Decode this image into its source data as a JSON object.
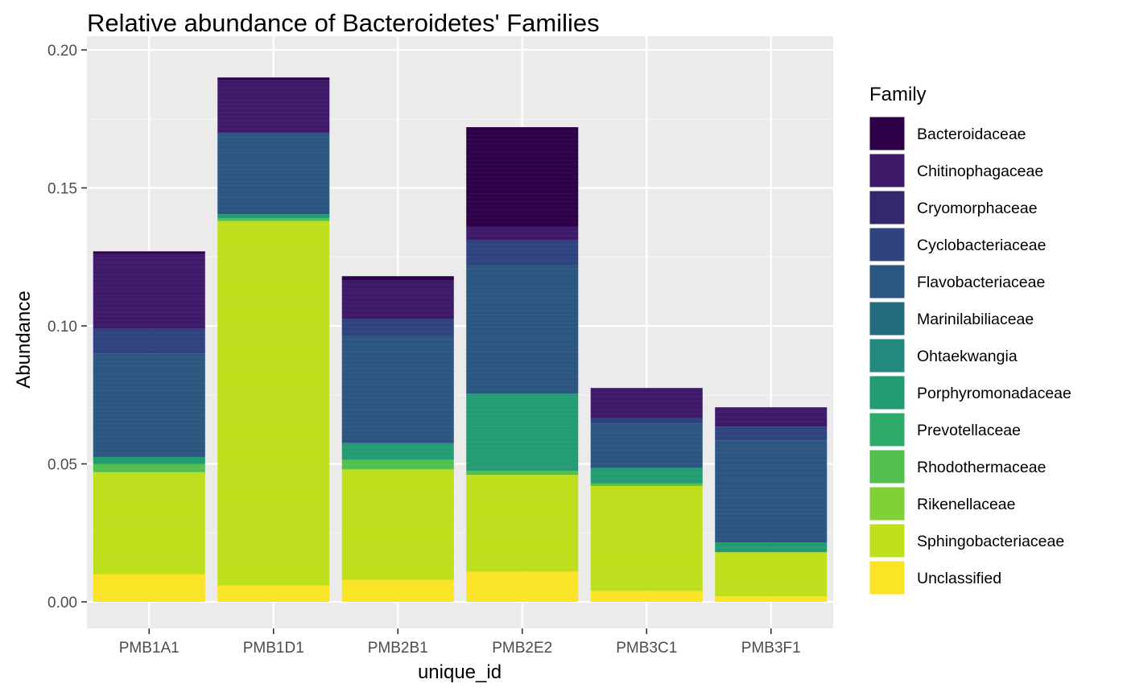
{
  "chart_data": {
    "type": "bar",
    "stacked": true,
    "title": "Relative abundance of Bacteroidetes' Families",
    "xlabel": "unique_id",
    "ylabel": "Abundance",
    "ylim": [
      0,
      0.2
    ],
    "yticks": [
      "0.00",
      "0.05",
      "0.10",
      "0.15",
      "0.20"
    ],
    "ytick_values": [
      0,
      0.05,
      0.1,
      0.15,
      0.2
    ],
    "grid": true,
    "legend_title": "Family",
    "legend_position": "right",
    "categories": [
      "PMB1A1",
      "PMB1D1",
      "PMB2B1",
      "PMB2E2",
      "PMB3C1",
      "PMB3F1"
    ],
    "series": [
      {
        "name": "Unclassified",
        "color": "#FDE725",
        "values": [
          0.01,
          0.006,
          0.008,
          0.011,
          0.004,
          0.002
        ]
      },
      {
        "name": "Sphingobacteriaceae",
        "color": "#C2DF23",
        "values": [
          0.037,
          0.132,
          0.04,
          0.035,
          0.038,
          0.016
        ]
      },
      {
        "name": "Rikenellaceae",
        "color": "#86D549",
        "values": [
          0.0,
          0.0,
          0.0,
          0.0,
          0.0,
          0.0
        ]
      },
      {
        "name": "Rhodothermaceae",
        "color": "#52C569",
        "values": [
          0.003,
          0.001,
          0.0035,
          0.0015,
          0.001,
          0.0
        ]
      },
      {
        "name": "Prevotellaceae",
        "color": "#2AB07F",
        "values": [
          0.0,
          0.0,
          0.0,
          0.0,
          0.0,
          0.0
        ]
      },
      {
        "name": "Porphyromonadaceae",
        "color": "#1E9B8A",
        "values": [
          0.0025,
          0.0015,
          0.006,
          0.028,
          0.0055,
          0.0035
        ]
      },
      {
        "name": "Ohtaekwangia",
        "color": "#25858E",
        "values": [
          0.0,
          0.0,
          0.0,
          0.0,
          0.0,
          0.0
        ]
      },
      {
        "name": "Marinilabiliaceae",
        "color": "#2D708E",
        "values": [
          0.0,
          0.0,
          0.0,
          0.0,
          0.0,
          0.0
        ]
      },
      {
        "name": "Flavobacteriaceae",
        "color": "#38598C",
        "values": [
          0.0375,
          0.0295,
          0.039,
          0.0465,
          0.016,
          0.037
        ]
      },
      {
        "name": "Cyclobacteriaceae",
        "color": "#414487",
        "values": [
          0.009,
          0.0,
          0.006,
          0.009,
          0.002,
          0.005
        ]
      },
      {
        "name": "Cryomorphaceae",
        "color": "#472F7D",
        "values": [
          0.0,
          0.0,
          0.0,
          0.0,
          0.0,
          0.0
        ]
      },
      {
        "name": "Chitinophagaceae",
        "color": "#46277F",
        "values": [
          0.027,
          0.019,
          0.014,
          0.005,
          0.011,
          0.007
        ]
      },
      {
        "name": "Bacteroidaceae",
        "color": "#440154",
        "values": [
          0.001,
          0.001,
          0.0015,
          0.036,
          0.0,
          0.0
        ]
      }
    ],
    "legend_order": [
      "Bacteroidaceae",
      "Chitinophagaceae",
      "Cryomorphaceae",
      "Cyclobacteriaceae",
      "Flavobacteriaceae",
      "Marinilabiliaceae",
      "Ohtaekwangia",
      "Porphyromonadaceae",
      "Prevotellaceae",
      "Rhodothermaceae",
      "Rikenellaceae",
      "Sphingobacteriaceae",
      "Unclassified"
    ],
    "legend_colors": [
      "#440154",
      "#481B6D",
      "#46337E",
      "#3F4889",
      "#365C8D",
      "#2E6E8E",
      "#277F8E",
      "#21918C",
      "#1FA187",
      "#2DB27D",
      "#4AC16D",
      "#71CF57",
      "#FDE725"
    ],
    "colors": {
      "panel_bg": "#EBEBEB",
      "grid_major": "#FFFFFF",
      "grid_minor": "#F4F4F4",
      "bacteroidaceae": "#2D0048",
      "chitinophagaceae": "#3E1A6A",
      "cryomorphaceae": "#33286E",
      "cyclobacteriaceae": "#2E4380",
      "flavobacteriaceae": "#2A5680",
      "marinilabiliaceae": "#246B7D",
      "ohtaekwangia": "#23897E",
      "porphyromonadaceae": "#239C74",
      "prevotellaceae": "#2FAB69",
      "rhodothermaceae": "#52BF4E",
      "rikenellaceae": "#7FD135",
      "sphingobacteriaceae": "#BEDF1C",
      "unclassified": "#FBE325"
    }
  }
}
